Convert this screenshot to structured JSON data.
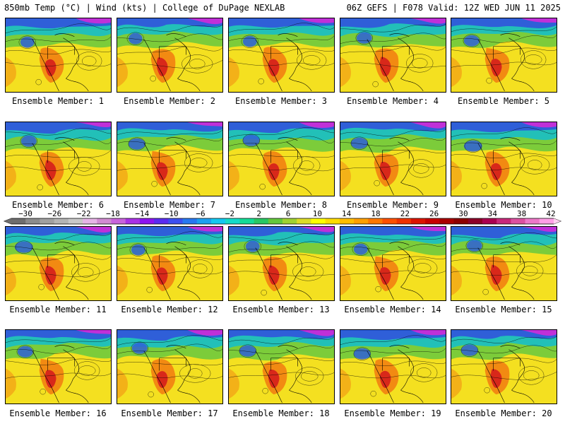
{
  "header": {
    "left": "850mb Temp (°C) | Wind (kts) | College of DuPage NEXLAB",
    "right": "06Z GEFS | F078 Valid: 12Z WED JUN 11 2025"
  },
  "panels": [
    {
      "label": "Ensemble Member: 1"
    },
    {
      "label": "Ensemble Member: 2"
    },
    {
      "label": "Ensemble Member: 3"
    },
    {
      "label": "Ensemble Member: 4"
    },
    {
      "label": "Ensemble Member: 5"
    },
    {
      "label": "Ensemble Member: 6"
    },
    {
      "label": "Ensemble Member: 7"
    },
    {
      "label": "Ensemble Member: 8"
    },
    {
      "label": "Ensemble Member: 9"
    },
    {
      "label": "Ensemble Member: 10"
    },
    {
      "label": "Ensemble Member: 11"
    },
    {
      "label": "Ensemble Member: 12"
    },
    {
      "label": "Ensemble Member: 13"
    },
    {
      "label": "Ensemble Member: 14"
    },
    {
      "label": "Ensemble Member: 15"
    },
    {
      "label": "Ensemble Member: 16"
    },
    {
      "label": "Ensemble Member: 17"
    },
    {
      "label": "Ensemble Member: 18"
    },
    {
      "label": "Ensemble Member: 19"
    },
    {
      "label": "Ensemble Member: 20"
    }
  ],
  "colorbar": {
    "ticks": [
      "−30",
      "−26",
      "−22",
      "−18",
      "−14",
      "−10",
      "−6",
      "−2",
      "2",
      "6",
      "10",
      "14",
      "18",
      "22",
      "26",
      "30",
      "34",
      "38",
      "42"
    ],
    "colors": [
      "#6e6e6e",
      "#8c8c8c",
      "#a0a0a0",
      "#b4b4b4",
      "#c8c8c8",
      "#e6b4e6",
      "#d28cd2",
      "#c864dc",
      "#aa32e6",
      "#8c14f0",
      "#5a2cf0",
      "#3c50f0",
      "#2878f0",
      "#1ea0f0",
      "#14c8f0",
      "#14dcc8",
      "#14dc96",
      "#28c864",
      "#64c83c",
      "#a0d232",
      "#dcdc28",
      "#ffff00",
      "#ffdc00",
      "#ffbe00",
      "#ffa000",
      "#ff7800",
      "#ff5000",
      "#f03200",
      "#dc1400",
      "#c80000",
      "#aa0000",
      "#8c0000",
      "#8c0028",
      "#aa0050",
      "#c8287a",
      "#dc50a0",
      "#ee78c8",
      "#ffa0e6"
    ]
  },
  "colors": {
    "cold": "#2f5fd8",
    "cool": "#22c0b8",
    "mild": "#7ccc3a",
    "warm": "#f4e020",
    "hot": "#f28a12",
    "very_hot": "#d8281a",
    "polar": "#c030d8",
    "contour": "#000000",
    "coast": "#000000"
  }
}
